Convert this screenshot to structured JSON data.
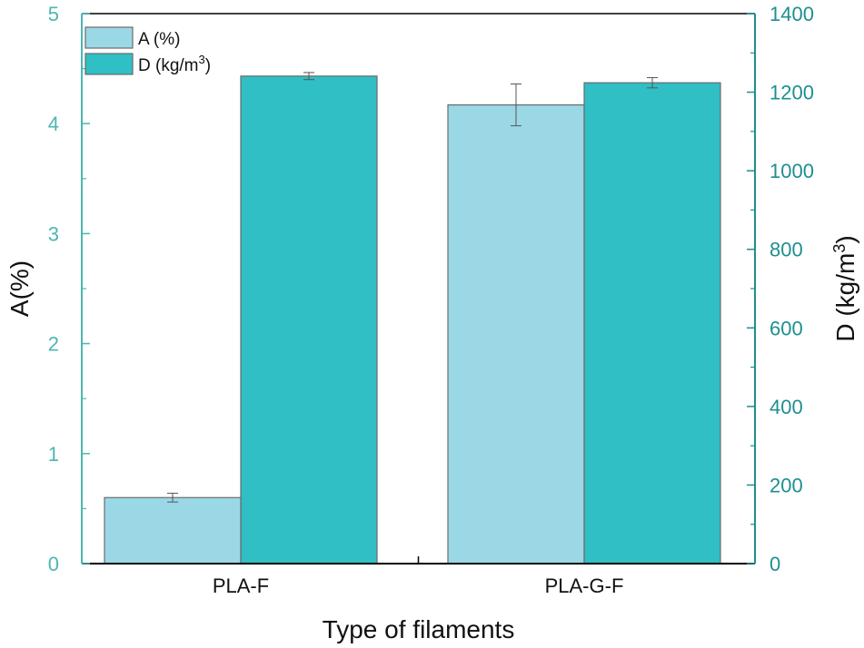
{
  "chart_data": {
    "type": "bar",
    "categories": [
      "PLA-F",
      "PLA-G-F"
    ],
    "series": [
      {
        "name": "A (%)",
        "axis": "left",
        "color": "#9bd8e6",
        "values": [
          0.6,
          4.17
        ],
        "errors": [
          0.04,
          0.19
        ]
      },
      {
        "name": "D (kg/m3)",
        "axis": "right",
        "color": "#2fbfc4",
        "values": [
          1241,
          1224
        ],
        "errors": [
          9,
          13
        ]
      }
    ],
    "xlabel": "Type of filaments",
    "ylabel_left": "A(%)",
    "ylabel_right": "D (kg/m3)",
    "ylim_left": [
      0,
      5
    ],
    "ylim_right": [
      0,
      1400
    ],
    "yticks_left": [
      0,
      1,
      2,
      3,
      4,
      5
    ],
    "yticks_right": [
      0,
      200,
      400,
      600,
      800,
      1000,
      1200,
      1400
    ],
    "legend_position": "top-left",
    "grid": false,
    "colors": {
      "left_axis": "#4bb6b3",
      "right_axis": "#1e8f8f",
      "bar_outline": "#6b6b6b"
    }
  }
}
